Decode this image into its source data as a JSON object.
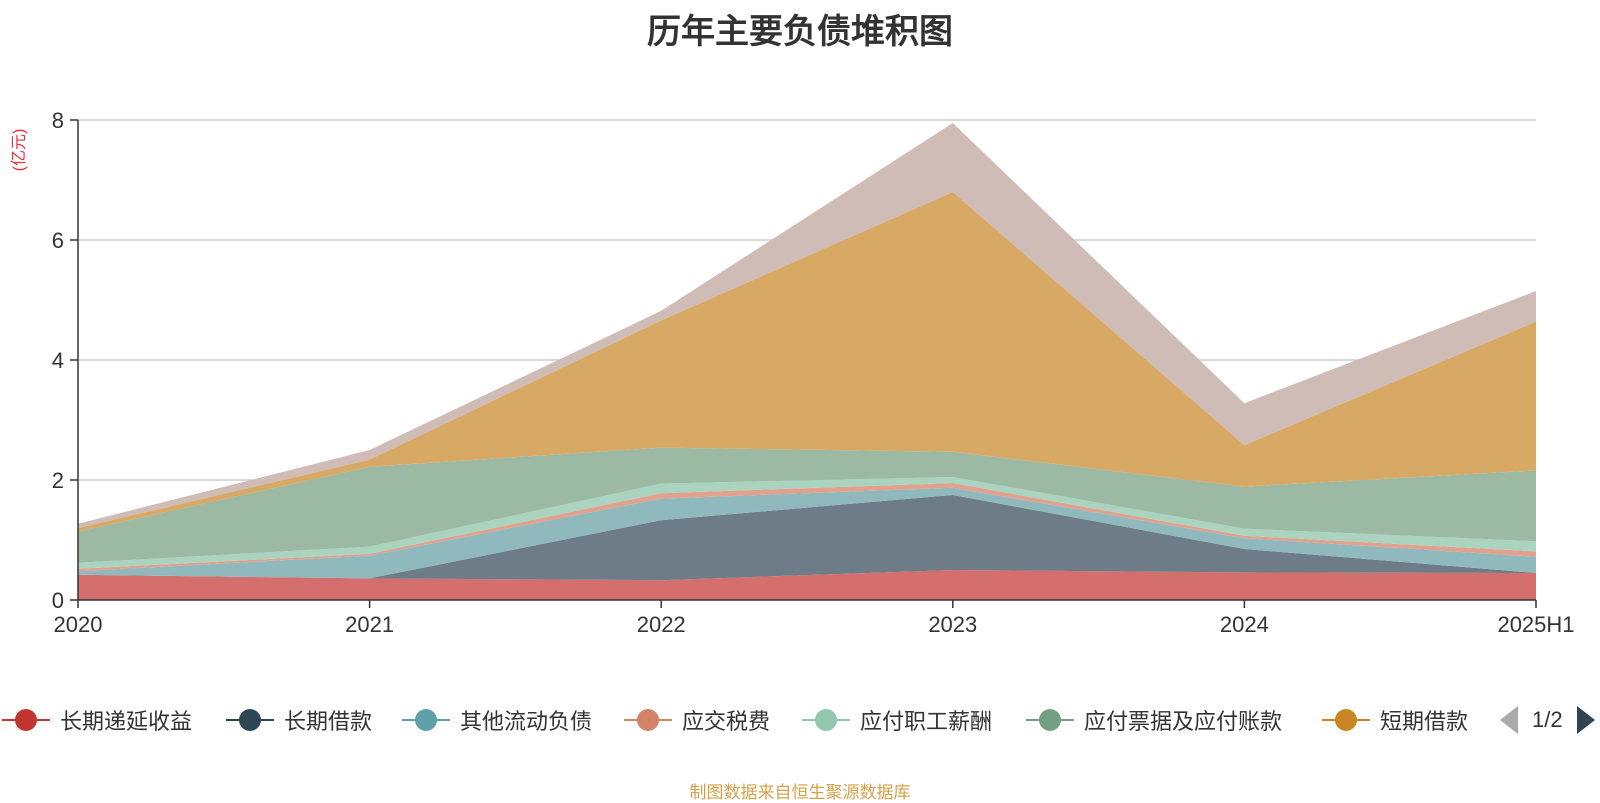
{
  "title": "历年主要负债堆积图",
  "unit_label": "(亿元)",
  "source": "制图数据来自恒生聚源数据库",
  "legend_page": "1/2",
  "chart_data": {
    "type": "area",
    "stacked": true,
    "title": "历年主要负债堆积图",
    "ylabel": "(亿元)",
    "xlabel": "",
    "categories": [
      "2020",
      "2021",
      "2022",
      "2023",
      "2024",
      "2025H1"
    ],
    "ylim": [
      0,
      8
    ],
    "yticks": [
      0,
      2,
      4,
      6,
      8
    ],
    "grid": true,
    "legend_position": "bottom",
    "series": [
      {
        "name": "长期递延收益",
        "color": "#c23531",
        "area_color": "#d46f6d",
        "values": [
          0.42,
          0.36,
          0.33,
          0.5,
          0.46,
          0.45
        ]
      },
      {
        "name": "长期借款",
        "color": "#2f4554",
        "area_color": "#6d7c87",
        "values": [
          0.0,
          0.0,
          1.0,
          1.25,
          0.39,
          0.0
        ]
      },
      {
        "name": "其他流动负债",
        "color": "#61a0a8",
        "area_color": "#90b9be",
        "values": [
          0.06,
          0.38,
          0.36,
          0.12,
          0.18,
          0.27
        ]
      },
      {
        "name": "应交税费",
        "color": "#d48265",
        "area_color": "#e0a28e",
        "values": [
          0.04,
          0.03,
          0.09,
          0.08,
          0.04,
          0.09
        ]
      },
      {
        "name": "应付职工薪酬",
        "color": "#91c7ae",
        "area_color": "#aad4c0",
        "values": [
          0.1,
          0.12,
          0.16,
          0.1,
          0.12,
          0.17
        ]
      },
      {
        "name": "应付票据及应付账款",
        "color": "#749f83",
        "area_color": "#9cb9a4",
        "values": [
          0.52,
          1.33,
          0.6,
          0.42,
          0.7,
          1.18
        ]
      },
      {
        "name": "短期借款",
        "color": "#ca8622",
        "area_color": "#d8a964",
        "values": [
          0.06,
          0.12,
          2.12,
          4.33,
          0.69,
          2.48
        ]
      },
      {
        "name": "",
        "color": "#bda29a",
        "area_color": "#d0bcb7",
        "values": [
          0.07,
          0.16,
          0.16,
          1.15,
          0.7,
          0.51
        ]
      }
    ]
  }
}
